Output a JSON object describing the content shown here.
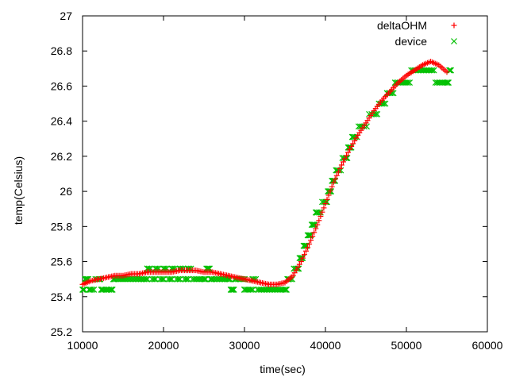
{
  "chart_data": {
    "type": "scatter",
    "xlabel": "time(sec)",
    "ylabel": "temp(Celsius)",
    "xlim": [
      10000,
      60000
    ],
    "ylim": [
      25.2,
      27
    ],
    "xticks": [
      10000,
      20000,
      30000,
      40000,
      50000,
      60000
    ],
    "yticks": [
      25.2,
      25.4,
      25.6,
      25.8,
      26,
      26.2,
      26.4,
      26.6,
      26.8,
      27
    ],
    "xtick_labels": [
      "10000",
      "20000",
      "30000",
      "40000",
      "50000",
      "60000"
    ],
    "ytick_labels": [
      "25.2",
      "25.4",
      "25.6",
      "25.8",
      "26",
      "26.2",
      "26.4",
      "26.6",
      "26.8",
      "27"
    ],
    "legend_position": "top-right",
    "series": [
      {
        "name": "deltaOHM",
        "marker": "plus",
        "color": "#ff0000",
        "points": [
          [
            10000,
            25.47
          ],
          [
            11000,
            25.49
          ],
          [
            12000,
            25.5
          ],
          [
            13000,
            25.51
          ],
          [
            14000,
            25.52
          ],
          [
            15000,
            25.52
          ],
          [
            16000,
            25.53
          ],
          [
            17000,
            25.53
          ],
          [
            18000,
            25.54
          ],
          [
            19000,
            25.54
          ],
          [
            20000,
            25.54
          ],
          [
            21000,
            25.54
          ],
          [
            22000,
            25.55
          ],
          [
            23000,
            25.55
          ],
          [
            24000,
            25.55
          ],
          [
            25000,
            25.54
          ],
          [
            26000,
            25.54
          ],
          [
            27000,
            25.53
          ],
          [
            28000,
            25.52
          ],
          [
            29000,
            25.51
          ],
          [
            30000,
            25.5
          ],
          [
            31000,
            25.49
          ],
          [
            32000,
            25.48
          ],
          [
            33000,
            25.47
          ],
          [
            34000,
            25.47
          ],
          [
            35000,
            25.48
          ],
          [
            36000,
            25.52
          ],
          [
            37000,
            25.6
          ],
          [
            38000,
            25.7
          ],
          [
            39000,
            25.81
          ],
          [
            40000,
            25.93
          ],
          [
            41000,
            26.05
          ],
          [
            42000,
            26.15
          ],
          [
            43000,
            26.24
          ],
          [
            44000,
            26.32
          ],
          [
            45000,
            26.39
          ],
          [
            46000,
            26.46
          ],
          [
            47000,
            26.52
          ],
          [
            48000,
            26.57
          ],
          [
            49000,
            26.62
          ],
          [
            50000,
            26.66
          ],
          [
            51000,
            26.69
          ],
          [
            52000,
            26.72
          ],
          [
            53000,
            26.74
          ],
          [
            54000,
            26.72
          ],
          [
            55000,
            26.68
          ]
        ]
      },
      {
        "name": "device",
        "marker": "cross",
        "color": "#00c000",
        "points": [
          [
            10000,
            25.44
          ],
          [
            10500,
            25.5
          ],
          [
            11000,
            25.44
          ],
          [
            12000,
            25.5
          ],
          [
            12500,
            25.44
          ],
          [
            13500,
            25.44
          ],
          [
            14000,
            25.5
          ],
          [
            15000,
            25.5
          ],
          [
            16000,
            25.5
          ],
          [
            17000,
            25.5
          ],
          [
            18000,
            25.5
          ],
          [
            18000,
            25.56
          ],
          [
            19000,
            25.5
          ],
          [
            19000,
            25.56
          ],
          [
            20000,
            25.5
          ],
          [
            20000,
            25.56
          ],
          [
            21000,
            25.5
          ],
          [
            21000,
            25.56
          ],
          [
            22000,
            25.5
          ],
          [
            22000,
            25.56
          ],
          [
            23000,
            25.5
          ],
          [
            23000,
            25.56
          ],
          [
            24000,
            25.5
          ],
          [
            25000,
            25.5
          ],
          [
            25500,
            25.56
          ],
          [
            26000,
            25.5
          ],
          [
            27000,
            25.5
          ],
          [
            28000,
            25.5
          ],
          [
            28500,
            25.44
          ],
          [
            29000,
            25.5
          ],
          [
            30000,
            25.5
          ],
          [
            30000,
            25.44
          ],
          [
            31000,
            25.44
          ],
          [
            31000,
            25.5
          ],
          [
            32000,
            25.44
          ],
          [
            33000,
            25.44
          ],
          [
            34000,
            25.44
          ],
          [
            35000,
            25.44
          ],
          [
            35500,
            25.5
          ],
          [
            36500,
            25.56
          ],
          [
            37000,
            25.62
          ],
          [
            37500,
            25.69
          ],
          [
            38000,
            25.75
          ],
          [
            38500,
            25.81
          ],
          [
            39000,
            25.88
          ],
          [
            40000,
            25.94
          ],
          [
            40500,
            26.0
          ],
          [
            41000,
            26.06
          ],
          [
            41500,
            26.12
          ],
          [
            42500,
            26.19
          ],
          [
            43000,
            26.25
          ],
          [
            43500,
            26.31
          ],
          [
            44500,
            26.37
          ],
          [
            46000,
            26.44
          ],
          [
            47000,
            26.5
          ],
          [
            48000,
            26.56
          ],
          [
            49000,
            26.62
          ],
          [
            50000,
            26.62
          ],
          [
            51000,
            26.69
          ],
          [
            52000,
            26.69
          ],
          [
            53000,
            26.69
          ],
          [
            54000,
            26.62
          ],
          [
            55000,
            26.62
          ],
          [
            55500,
            26.69
          ]
        ]
      }
    ]
  }
}
